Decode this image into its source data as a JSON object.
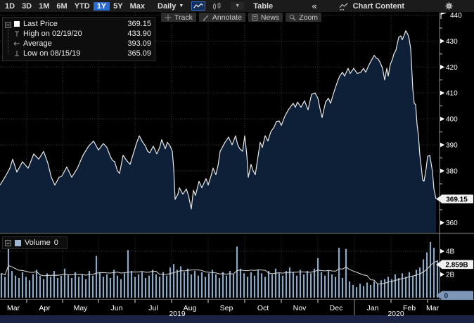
{
  "toolbar": {
    "ranges": [
      "1D",
      "3D",
      "1M",
      "6M",
      "YTD",
      "1Y",
      "5Y",
      "Max"
    ],
    "selected_range": "1Y",
    "periodicity": "Daily",
    "table_label": "Table",
    "chart_content_label": "Chart Content"
  },
  "icons": {
    "caret_down": "▼",
    "small_caret": "▼",
    "collapse": "«"
  },
  "actions": {
    "track": "Track",
    "annotate": "Annotate",
    "news": "News",
    "zoom": "Zoom"
  },
  "legend": {
    "rows": [
      {
        "label": "Last Price",
        "value": "369.15"
      },
      {
        "label": "High on 02/19/20",
        "value": "433.90"
      },
      {
        "label": "Average",
        "value": "393.09"
      },
      {
        "label": "Low on 08/15/19",
        "value": "365.09"
      }
    ]
  },
  "volume_legend": {
    "label": "Volume",
    "value": "0"
  },
  "colors": {
    "accent_blue": "#2a6bd2",
    "area_fill": "#0d2037",
    "price_line": "#e8e8e8",
    "volume_bar": "#8da8c6",
    "volume_ma_line": "#d9d9d9",
    "grid": "#3c3c3c",
    "axis_line": "#8a8a8a",
    "divider": "#565656",
    "tick_text": "#ffffff",
    "tag_bg": "#f0f0f0",
    "tag_text": "#000000",
    "zero_tag_bg": "#7d97b9",
    "zero_tag_text": "#13253f",
    "window_border": "#1c2244"
  },
  "chart_data": {
    "type": "area",
    "title": "",
    "legend_position": "top-left",
    "grid": "dotted",
    "price_panel": {
      "ylim": [
        355,
        443.5
      ],
      "gridline_values": [
        360,
        370,
        380,
        390,
        400,
        410,
        420,
        430,
        440
      ],
      "labeled_ticks": [
        360,
        380,
        390,
        400,
        410,
        420,
        430
      ],
      "minor_ticks": [
        365,
        375,
        385,
        395,
        405,
        415,
        425,
        435
      ],
      "top_flag_label": "440",
      "last_price": 369.15,
      "last_price_tag": "369.15",
      "high": 433.9,
      "high_date": "02/19/20",
      "average": 393.09,
      "low": 365.09,
      "low_date": "08/15/19",
      "price_series": [
        [
          0,
          374.5
        ],
        [
          8,
          378
        ],
        [
          14,
          381
        ],
        [
          18,
          384.5
        ],
        [
          24,
          379.5
        ],
        [
          32,
          383.5
        ],
        [
          40,
          381
        ],
        [
          48,
          386.5
        ],
        [
          55,
          384.5
        ],
        [
          62,
          387.5
        ],
        [
          68,
          383
        ],
        [
          73,
          377.5
        ],
        [
          78,
          374.5
        ],
        [
          84,
          377.5
        ],
        [
          88,
          378
        ],
        [
          95,
          381.5
        ],
        [
          102,
          377.5
        ],
        [
          110,
          381
        ],
        [
          118,
          386
        ],
        [
          126,
          389.5
        ],
        [
          133,
          391.5
        ],
        [
          140,
          388
        ],
        [
          147,
          390.5
        ],
        [
          152,
          389
        ],
        [
          157,
          385.5
        ],
        [
          160,
          384
        ],
        [
          163,
          383.5
        ],
        [
          167,
          380
        ],
        [
          170,
          379
        ],
        [
          175,
          386
        ],
        [
          180,
          384
        ],
        [
          185,
          382.5
        ],
        [
          190,
          387
        ],
        [
          194,
          390.5
        ],
        [
          198,
          393.5
        ],
        [
          203,
          391
        ],
        [
          207,
          389.5
        ],
        [
          210,
          387.5
        ],
        [
          213,
          387
        ],
        [
          218,
          389.5
        ],
        [
          223,
          386.5
        ],
        [
          227,
          389
        ],
        [
          230,
          392
        ],
        [
          235,
          388.5
        ],
        [
          238,
          391
        ],
        [
          242,
          389.5
        ],
        [
          245,
          387.5
        ],
        [
          247,
          381
        ],
        [
          249,
          369
        ],
        [
          253,
          371
        ],
        [
          255,
          373.5
        ],
        [
          258,
          372
        ],
        [
          260,
          371
        ],
        [
          265,
          373
        ],
        [
          268,
          370.5
        ],
        [
          272,
          365.3
        ],
        [
          275,
          372.5
        ],
        [
          278,
          370.5
        ],
        [
          283,
          376
        ],
        [
          287,
          373.5
        ],
        [
          293,
          377
        ],
        [
          296,
          374.5
        ],
        [
          300,
          378
        ],
        [
          303,
          381
        ],
        [
          307,
          378.5
        ],
        [
          310,
          382
        ],
        [
          313,
          387.5
        ],
        [
          317,
          389.5
        ],
        [
          320,
          391
        ],
        [
          325,
          393
        ],
        [
          330,
          390
        ],
        [
          335,
          393.5
        ],
        [
          338,
          390
        ],
        [
          341,
          388.5
        ],
        [
          345,
          387.5
        ],
        [
          348,
          393.5
        ],
        [
          351,
          386
        ],
        [
          353,
          377.5
        ],
        [
          357,
          382.5
        ],
        [
          360,
          380
        ],
        [
          363,
          378.5
        ],
        [
          366,
          384
        ],
        [
          370,
          391
        ],
        [
          373,
          389
        ],
        [
          377,
          393.5
        ],
        [
          381,
          391.5
        ],
        [
          385,
          395
        ],
        [
          390,
          397
        ],
        [
          393,
          399
        ],
        [
          397,
          399.2
        ],
        [
          400,
          397.5
        ],
        [
          405,
          401
        ],
        [
          410,
          403.5
        ],
        [
          414,
          405
        ],
        [
          417,
          406
        ],
        [
          420,
          404.5
        ],
        [
          423,
          406.5
        ],
        [
          428,
          404.5
        ],
        [
          433,
          407
        ],
        [
          438,
          403.5
        ],
        [
          443,
          409.5
        ],
        [
          448,
          410
        ],
        [
          452,
          408
        ],
        [
          455,
          404
        ],
        [
          458,
          400.5
        ],
        [
          463,
          406.5
        ],
        [
          467,
          408
        ],
        [
          470,
          406
        ],
        [
          475,
          410.5
        ],
        [
          480,
          414.5
        ],
        [
          483,
          416.5
        ],
        [
          487,
          418
        ],
        [
          490,
          416.5
        ],
        [
          495,
          419.5
        ],
        [
          498,
          417.5
        ],
        [
          503,
          419.5
        ],
        [
          508,
          417.5
        ],
        [
          513,
          418
        ],
        [
          517,
          419.5
        ],
        [
          520,
          418
        ],
        [
          525,
          421
        ],
        [
          529,
          423
        ],
        [
          532,
          424.5
        ],
        [
          535,
          423.5
        ],
        [
          538,
          423
        ],
        [
          541,
          421.5
        ],
        [
          544,
          419.5
        ],
        [
          547,
          415
        ],
        [
          550,
          419.5
        ],
        [
          552,
          416.5
        ],
        [
          555,
          421
        ],
        [
          558,
          423
        ],
        [
          560,
          425
        ],
        [
          563,
          426.5
        ],
        [
          567,
          431.5
        ],
        [
          570,
          432
        ],
        [
          572,
          430.5
        ],
        [
          575,
          432.5
        ],
        [
          577,
          434
        ],
        [
          580,
          432.5
        ],
        [
          582,
          430.5
        ],
        [
          584,
          427
        ],
        [
          587,
          411.5
        ],
        [
          589,
          406
        ],
        [
          591,
          405.5
        ],
        [
          593,
          398
        ],
        [
          595,
          393.5
        ],
        [
          597,
          386
        ],
        [
          599,
          381.5
        ],
        [
          601,
          376.5
        ],
        [
          603,
          376
        ],
        [
          606,
          381
        ],
        [
          608,
          385.5
        ],
        [
          611,
          386
        ],
        [
          613,
          383
        ],
        [
          615,
          379.5
        ],
        [
          617,
          373
        ],
        [
          620,
          369.15
        ]
      ]
    },
    "volume_panel": {
      "yticks": [
        {
          "label": "2B",
          "value": 2
        },
        {
          "label": "4B",
          "value": 4
        }
      ],
      "ma_tag": "2.859B",
      "ma_value": 2.859,
      "zero_tag": "0",
      "volume_series": [
        2.1,
        1.8,
        4.4,
        2.3,
        1.9,
        1.7,
        2.2,
        1.8,
        1.5,
        2.0,
        2.4,
        1.9,
        1.6,
        2.1,
        1.8,
        2.3,
        1.7,
        1.9,
        2.5,
        2.0,
        1.7,
        2.2,
        1.8,
        2.0,
        1.6,
        2.3,
        1.9,
        3.6,
        2.2,
        1.8,
        2.0,
        1.7,
        2.4,
        1.9,
        1.6,
        2.1,
        4.1,
        2.3,
        1.8,
        2.0,
        2.2,
        1.7,
        1.9,
        2.4,
        2.0,
        1.8,
        2.2,
        1.9,
        2.6,
        2.9,
        2.4,
        2.7,
        2.2,
        2.5,
        2.0,
        2.3,
        1.9,
        2.2,
        1.8,
        2.1,
        2.4,
        2.0,
        1.7,
        2.2,
        1.9,
        2.3,
        2.0,
        4.4,
        2.5,
        2.1,
        1.8,
        2.2,
        1.9,
        2.4,
        2.1,
        1.8,
        2.3,
        2.0,
        2.5,
        2.1,
        1.9,
        2.3,
        2.6,
        2.2,
        1.9,
        2.4,
        2.0,
        2.3,
        2.1,
        2.5,
        3.4,
        2.2,
        1.9,
        2.3,
        2.0,
        1.8,
        4.3,
        1.7,
        4.2,
        1.4,
        1.1,
        0.9,
        1.2,
        1.0,
        1.3,
        1.1,
        1.4,
        1.2,
        1.5,
        1.6,
        1.8,
        1.6,
        2.0,
        1.7,
        2.1,
        1.8,
        2.2,
        1.9,
        2.4,
        2.6,
        3.3,
        3.9,
        4.8,
        4.3,
        3.2
      ]
    },
    "x_axis": {
      "month_labels": [
        "Mar",
        "Apr",
        "May",
        "Jun",
        "Jul",
        "Aug",
        "Sep",
        "Oct",
        "Nov",
        "Dec",
        "Jan",
        "Feb",
        "Mar"
      ],
      "month_tick_x": [
        38,
        89,
        140,
        192,
        244,
        296,
        348,
        400,
        452,
        504,
        556,
        608
      ],
      "year_labels": [
        "2019",
        "2020"
      ],
      "year_label_x": [
        252,
        563
      ],
      "year_divider_x": 504
    }
  }
}
